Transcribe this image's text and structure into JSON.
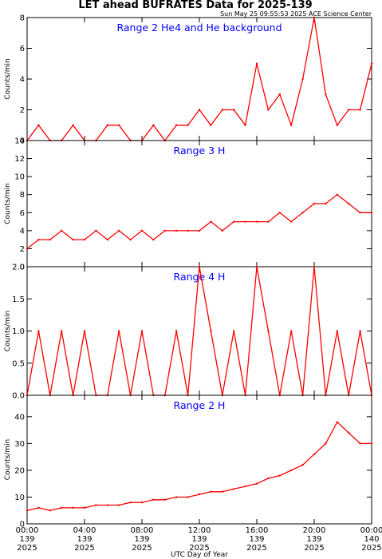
{
  "header": {
    "title": "LET ahead BUFRATES Data for 2025-139",
    "timestamp": "Sun May 25 09:55:53 2025 ACE Science Center"
  },
  "chart_data": [
    {
      "type": "line",
      "title": "Range 2 He4 and He background",
      "ylabel": "Counts/min",
      "ylim": [
        0,
        8
      ],
      "yticks": [
        "0",
        "2",
        "4",
        "6",
        "8"
      ],
      "xlim": [
        0,
        24
      ],
      "x_units": "UTC hours of day 139",
      "color": "#ff0000",
      "series": [
        {
          "values": [
            0,
            1,
            0,
            0,
            1,
            0,
            0,
            1,
            1,
            0,
            0,
            1,
            0,
            1,
            1,
            2,
            1,
            2,
            2,
            1,
            5,
            2,
            3,
            1,
            4,
            8,
            3,
            1,
            2,
            2,
            5
          ],
          "x": [
            0,
            0.8,
            1.6,
            2.4,
            3.2,
            4.0,
            4.8,
            5.6,
            6.4,
            7.2,
            8.0,
            8.8,
            9.6,
            10.4,
            11.2,
            12.0,
            12.8,
            13.6,
            14.4,
            15.2,
            16.0,
            16.8,
            17.6,
            18.4,
            19.2,
            20.0,
            20.8,
            21.6,
            22.4,
            23.2,
            24.0
          ]
        }
      ]
    },
    {
      "type": "line",
      "title": "Range 3 H",
      "ylabel": "Counts/min",
      "ylim": [
        0,
        14
      ],
      "yticks": [
        "0",
        "2",
        "4",
        "6",
        "8",
        "10",
        "12",
        "14"
      ],
      "xlim": [
        0,
        24
      ],
      "x_units": "UTC hours of day 139",
      "color": "#ff0000",
      "series": [
        {
          "values": [
            2,
            3,
            3,
            4,
            3,
            3,
            4,
            3,
            4,
            3,
            4,
            3,
            4,
            4,
            4,
            4,
            5,
            4,
            5,
            5,
            5,
            5,
            6,
            5,
            6,
            7,
            7,
            8,
            7,
            6,
            6
          ],
          "x": [
            0,
            0.8,
            1.6,
            2.4,
            3.2,
            4.0,
            4.8,
            5.6,
            6.4,
            7.2,
            8.0,
            8.8,
            9.6,
            10.4,
            11.2,
            12.0,
            12.8,
            13.6,
            14.4,
            15.2,
            16.0,
            16.8,
            17.6,
            18.4,
            19.2,
            20.0,
            20.8,
            21.6,
            22.4,
            23.2,
            24.0
          ]
        }
      ]
    },
    {
      "type": "line",
      "title": "Range 4 H",
      "ylabel": "Counts/min",
      "ylim": [
        0,
        2
      ],
      "yticks": [
        "0.0",
        "0.5",
        "1.0",
        "1.5",
        "2.0"
      ],
      "xlim": [
        0,
        24
      ],
      "x_units": "UTC hours of day 139",
      "color": "#ff0000",
      "series": [
        {
          "values": [
            0,
            1,
            0,
            1,
            0,
            1,
            0,
            0,
            1,
            0,
            1,
            0,
            0,
            1,
            0,
            2,
            1,
            0,
            1,
            0,
            2,
            1,
            0,
            1,
            0,
            2,
            0,
            1,
            0,
            1,
            0
          ],
          "x": [
            0,
            0.8,
            1.6,
            2.4,
            3.2,
            4.0,
            4.8,
            5.6,
            6.4,
            7.2,
            8.0,
            8.8,
            9.6,
            10.4,
            11.2,
            12.0,
            12.8,
            13.6,
            14.4,
            15.2,
            16.0,
            16.8,
            17.6,
            18.4,
            19.2,
            20.0,
            20.8,
            21.6,
            22.4,
            23.2,
            24.0
          ]
        }
      ]
    },
    {
      "type": "line",
      "title": "Range 2 H",
      "ylabel": "Counts/min",
      "xlabel": "UTC Day of Year",
      "ylim": [
        0,
        48
      ],
      "yticks": [
        "0",
        "10",
        "20",
        "30",
        "40"
      ],
      "xlim": [
        0,
        24
      ],
      "x_units": "UTC hours of day 139",
      "color": "#ff0000",
      "series": [
        {
          "values": [
            5,
            6,
            5,
            6,
            6,
            6,
            7,
            7,
            7,
            8,
            8,
            9,
            9,
            10,
            10,
            11,
            12,
            12,
            13,
            14,
            15,
            17,
            18,
            20,
            22,
            26,
            30,
            38,
            34,
            30,
            30
          ],
          "x": [
            0,
            0.8,
            1.6,
            2.4,
            3.2,
            4.0,
            4.8,
            5.6,
            6.4,
            7.2,
            8.0,
            8.8,
            9.6,
            10.4,
            11.2,
            12.0,
            12.8,
            13.6,
            14.4,
            15.2,
            16.0,
            16.8,
            17.6,
            18.4,
            19.2,
            20.0,
            20.8,
            21.6,
            22.4,
            23.2,
            24.0
          ]
        }
      ]
    }
  ],
  "x_axis": {
    "ticks": [
      {
        "time": "00:00",
        "day": "139",
        "year": "2025"
      },
      {
        "time": "04:00",
        "day": "139",
        "year": "2025"
      },
      {
        "time": "08:00",
        "day": "139",
        "year": "2025"
      },
      {
        "time": "12:00",
        "day": "139",
        "year": "2025"
      },
      {
        "time": "16:00",
        "day": "139",
        "year": "2025"
      },
      {
        "time": "20:00",
        "day": "139",
        "year": "2025"
      },
      {
        "time": "00:00",
        "day": "140",
        "year": "2025"
      }
    ]
  }
}
